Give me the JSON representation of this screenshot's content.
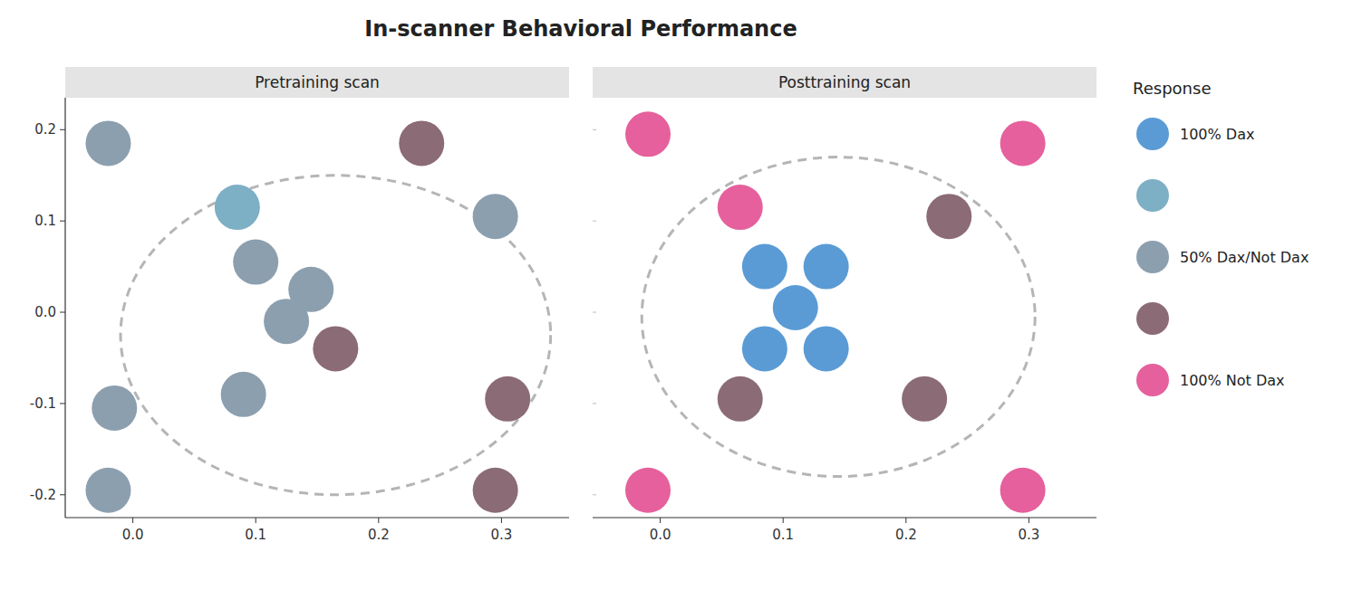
{
  "chart_data": [
    {
      "type": "scatter",
      "title": "In-scanner Behavioral Performance",
      "subtitle": "Pretraining scan",
      "x": [
        -0.02,
        0.085,
        0.235,
        0.295,
        0.1,
        0.145,
        0.125,
        0.165,
        0.09,
        0.305,
        -0.015,
        -0.02,
        0.295
      ],
      "values": [
        0.185,
        0.115,
        0.185,
        0.105,
        0.055,
        0.025,
        -0.01,
        -0.04,
        -0.09,
        -0.095,
        -0.105,
        -0.195,
        -0.195
      ],
      "colors": [
        "#8c9faf",
        "#7dafc5",
        "#8b6b75",
        "#8c9faf",
        "#8c9faf",
        "#8c9faf",
        "#8c9faf",
        "#8b6b75",
        "#8c9faf",
        "#8b6b75",
        "#8c9faf",
        "#8c9faf",
        "#8b6b75"
      ],
      "ellipse": {
        "cx": 0.165,
        "cy": -0.025,
        "rx": 0.175,
        "ry": 0.175
      },
      "xlim": [
        -0.055,
        0.355
      ],
      "ylim": [
        -0.225,
        0.235
      ],
      "xticks": [
        {
          "value": 0.0,
          "label": "0.0"
        },
        0.1,
        0.2,
        0.3
      ],
      "yticks": [
        -0.2,
        -0.1,
        {
          "value": 0.0,
          "label": "0.0"
        },
        0.1,
        0.2
      ],
      "grid": false
    },
    {
      "type": "scatter",
      "subtitle": "Posttraining scan",
      "x": [
        -0.01,
        0.065,
        0.295,
        0.235,
        0.085,
        0.135,
        0.11,
        0.085,
        0.135,
        0.065,
        0.215,
        -0.01,
        0.295
      ],
      "values": [
        0.195,
        0.115,
        0.185,
        0.105,
        0.05,
        0.05,
        0.005,
        -0.04,
        -0.04,
        -0.095,
        -0.095,
        -0.195,
        -0.195
      ],
      "colors": [
        "#e5609c",
        "#e5609c",
        "#e5609c",
        "#8b6b75",
        "#5b9bd5",
        "#5b9bd5",
        "#5b9bd5",
        "#5b9bd5",
        "#5b9bd5",
        "#8b6b75",
        "#8b6b75",
        "#e5609c",
        "#e5609c"
      ],
      "ellipse": {
        "cx": 0.145,
        "cy": -0.005,
        "rx": 0.16,
        "ry": 0.175
      },
      "xlim": [
        -0.055,
        0.355
      ],
      "ylim": [
        -0.225,
        0.235
      ],
      "xticks": [
        {
          "value": 0.0,
          "label": "0.0"
        },
        0.1,
        0.2,
        0.3
      ],
      "yticks": [
        -0.2,
        -0.1,
        {
          "value": 0.0,
          "label": "0.0"
        },
        0.1,
        0.2
      ],
      "tick_labels": "x",
      "grid": false,
      "legend": "right",
      "legend_title": "Response",
      "legend_entries": [
        {
          "color": "#5b9bd5",
          "label": "100% Dax"
        },
        {
          "color": "#7dafc5",
          "label": null
        },
        {
          "color": "#8c9faf",
          "label": "50% Dax/Not Dax"
        },
        {
          "color": "#8b6b75",
          "label": null
        },
        {
          "color": "#e5609c",
          "label": "100% Not Dax"
        }
      ]
    }
  ]
}
